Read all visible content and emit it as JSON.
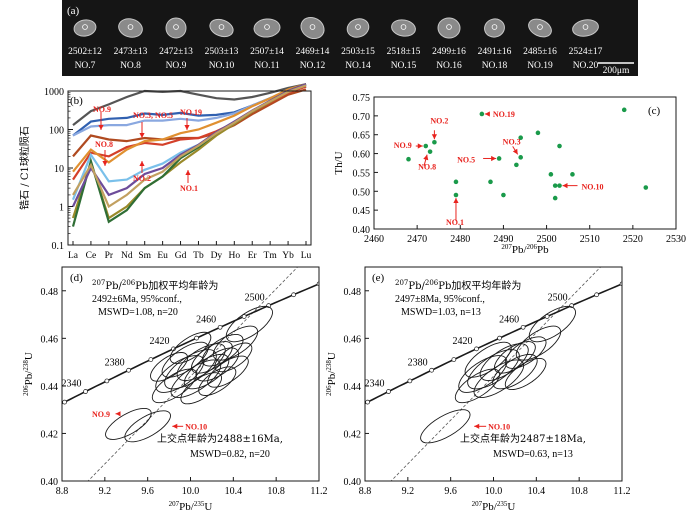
{
  "figure": {
    "panel_a": {
      "label": "(a)",
      "scale": "200μm",
      "grains": [
        {
          "age": "2502±12",
          "no": "NO.7"
        },
        {
          "age": "2473±13",
          "no": "NO.8"
        },
        {
          "age": "2472±13",
          "no": "NO.9"
        },
        {
          "age": "2503±13",
          "no": "NO.10"
        },
        {
          "age": "2507±14",
          "no": "NO.11"
        },
        {
          "age": "2469±14",
          "no": "NO.12"
        },
        {
          "age": "2503±15",
          "no": "NO.14"
        },
        {
          "age": "2518±15",
          "no": "NO.15"
        },
        {
          "age": "2499±16",
          "no": "NO.16"
        },
        {
          "age": "2491±16",
          "no": "NO.18"
        },
        {
          "age": "2485±16",
          "no": "NO.19"
        },
        {
          "age": "2524±17",
          "no": "NO.20"
        }
      ]
    },
    "colors": {
      "red": "#e8231e",
      "green": "#1a9a4a",
      "black": "#1a1a1a"
    }
  },
  "chart_data": [
    {
      "panel": "(b)",
      "type": "line",
      "title": "",
      "ylabel": "锆石 / C1球粒陨石",
      "yscale": "log",
      "ylim": [
        0.1,
        1000
      ],
      "yticks": [
        "0.1",
        "1",
        "10",
        "100",
        "1000"
      ],
      "categories": [
        "La",
        "Ce",
        "Pr",
        "Nd",
        "Sm",
        "Eu",
        "Gd",
        "Tb",
        "Dy",
        "Ho",
        "Er",
        "Tm",
        "Yb",
        "Lu"
      ],
      "annotations": [
        "NO.9",
        "NO.3, NO.5",
        "NO.19",
        "NO.8",
        "NO.2",
        "NO.1"
      ],
      "series": [
        {
          "name": "s1",
          "color": "#555555",
          "values": [
            130,
            300,
            450,
            700,
            1000,
            950,
            1000,
            800,
            650,
            600,
            700,
            900,
            1200,
            1500
          ]
        },
        {
          "name": "s2",
          "color": "#3060b0",
          "values": [
            70,
            160,
            190,
            200,
            260,
            240,
            270,
            230,
            240,
            280,
            420,
            650,
            1000,
            1300
          ]
        },
        {
          "name": "s3",
          "color": "#8aa8e0",
          "values": [
            70,
            120,
            130,
            130,
            170,
            170,
            190,
            170,
            200,
            260,
            420,
            650,
            1000,
            1300
          ]
        },
        {
          "name": "s4",
          "color": "#b04a20",
          "values": [
            20,
            70,
            55,
            50,
            60,
            55,
            60,
            60,
            80,
            130,
            250,
            450,
            800,
            1100
          ]
        },
        {
          "name": "s5",
          "color": "#d4402a",
          "values": [
            5,
            25,
            20,
            35,
            45,
            40,
            55,
            60,
            90,
            150,
            290,
            500,
            900,
            1300
          ]
        },
        {
          "name": "s6",
          "color": "#e09030",
          "values": [
            8,
            30,
            14,
            30,
            50,
            55,
            80,
            100,
            150,
            230,
            400,
            650,
            1100,
            1500
          ]
        },
        {
          "name": "s7",
          "color": "#7ac0ea",
          "values": [
            1.5,
            22,
            4.5,
            5,
            9,
            13,
            25,
            40,
            80,
            150,
            300,
            550,
            950,
            1400
          ]
        },
        {
          "name": "s8",
          "color": "#9a8a2a",
          "values": [
            0.5,
            14,
            0.5,
            1,
            3,
            6,
            14,
            30,
            70,
            140,
            290,
            520,
            950,
            1400
          ]
        },
        {
          "name": "s9",
          "color": "#2f6e35",
          "values": [
            0.3,
            15,
            0.4,
            0.8,
            3,
            6,
            18,
            35,
            80,
            150,
            300,
            550,
            1000,
            1500
          ]
        },
        {
          "name": "s10",
          "color": "#6d4c9a",
          "values": [
            1,
            10,
            2,
            3,
            7,
            10,
            22,
            40,
            85,
            160,
            310,
            560,
            1000,
            1500
          ]
        },
        {
          "name": "s11",
          "color": "#c2a060",
          "values": [
            2,
            12,
            1,
            2,
            5,
            8,
            20,
            38,
            80,
            150,
            300,
            540,
            950,
            1400
          ]
        }
      ]
    },
    {
      "panel": "(c)",
      "type": "scatter",
      "xlabel": "207Pb/206Pb",
      "ylabel": "Th/U",
      "xlim": [
        2460,
        2530
      ],
      "ylim": [
        0.4,
        0.75
      ],
      "xticks": [
        "2460",
        "2470",
        "2480",
        "2490",
        "2500",
        "2510",
        "2520",
        "2530"
      ],
      "yticks": [
        "0.40",
        "0.45",
        "0.50",
        "0.55",
        "0.60",
        "0.65",
        "0.70",
        "0.75"
      ],
      "points": [
        {
          "x": 2468,
          "y": 0.585
        },
        {
          "x": 2472,
          "y": 0.62
        },
        {
          "x": 2473,
          "y": 0.605
        },
        {
          "x": 2474,
          "y": 0.63
        },
        {
          "x": 2479,
          "y": 0.525
        },
        {
          "x": 2479,
          "y": 0.49
        },
        {
          "x": 2485,
          "y": 0.705
        },
        {
          "x": 2487,
          "y": 0.525
        },
        {
          "x": 2489,
          "y": 0.587
        },
        {
          "x": 2490,
          "y": 0.49
        },
        {
          "x": 2493,
          "y": 0.57
        },
        {
          "x": 2494,
          "y": 0.59
        },
        {
          "x": 2494,
          "y": 0.642
        },
        {
          "x": 2498,
          "y": 0.655
        },
        {
          "x": 2501,
          "y": 0.545
        },
        {
          "x": 2502,
          "y": 0.515
        },
        {
          "x": 2502,
          "y": 0.482
        },
        {
          "x": 2503,
          "y": 0.62
        },
        {
          "x": 2503,
          "y": 0.515
        },
        {
          "x": 2506,
          "y": 0.545
        },
        {
          "x": 2518,
          "y": 0.716
        },
        {
          "x": 2523,
          "y": 0.51
        }
      ],
      "annotations": [
        {
          "text": "NO.9",
          "x": 2472,
          "y": 0.62
        },
        {
          "text": "NO.2",
          "x": 2474,
          "y": 0.63
        },
        {
          "text": "NO.8",
          "x": 2473,
          "y": 0.605
        },
        {
          "text": "NO.1",
          "x": 2479,
          "y": 0.49
        },
        {
          "text": "NO.19",
          "x": 2485,
          "y": 0.705
        },
        {
          "text": "NO.5",
          "x": 2489,
          "y": 0.587
        },
        {
          "text": "NO.3",
          "x": 2494,
          "y": 0.59
        },
        {
          "text": "NO.10",
          "x": 2503,
          "y": 0.515
        }
      ]
    },
    {
      "panel": "(d)",
      "type": "scatter",
      "xlabel": "207Pb/235U",
      "ylabel": "206Pb/238U",
      "xlim": [
        8.8,
        11.2
      ],
      "ylim": [
        0.4,
        0.49
      ],
      "xticks": [
        "8.8",
        "9.2",
        "9.6",
        "10.0",
        "10.4",
        "10.8",
        "11.2"
      ],
      "yticks": [
        "0.40",
        "0.42",
        "0.44",
        "0.46",
        "0.48"
      ],
      "concordia_ages": [
        "2340",
        "2380",
        "2420",
        "2460",
        "2500"
      ],
      "text_upper": [
        "207Pb/206Pb加权平均年龄为",
        "2492±6Ma, 95%conf.,",
        "MSWD=1.08, n=20"
      ],
      "text_lower": [
        "上交点年龄为2488±16Ma,",
        "MSWD=0.82, n=20"
      ],
      "annotations": [
        "NO.9",
        "NO.10"
      ],
      "ellipses": [
        {
          "cx": 10.55,
          "cy": 0.466,
          "rx": 0.25,
          "ry": 0.0048,
          "angle": -34
        },
        {
          "cx": 10.42,
          "cy": 0.458,
          "rx": 0.24,
          "ry": 0.0046,
          "angle": -34
        },
        {
          "cx": 10.3,
          "cy": 0.455,
          "rx": 0.22,
          "ry": 0.0044,
          "angle": -34
        },
        {
          "cx": 10.1,
          "cy": 0.45,
          "rx": 0.26,
          "ry": 0.005,
          "angle": -34
        },
        {
          "cx": 10.0,
          "cy": 0.447,
          "rx": 0.28,
          "ry": 0.0052,
          "angle": -34
        },
        {
          "cx": 10.15,
          "cy": 0.446,
          "rx": 0.24,
          "ry": 0.0048,
          "angle": -34
        },
        {
          "cx": 10.25,
          "cy": 0.449,
          "rx": 0.23,
          "ry": 0.0046,
          "angle": -34
        },
        {
          "cx": 9.9,
          "cy": 0.445,
          "rx": 0.26,
          "ry": 0.005,
          "angle": -34
        },
        {
          "cx": 10.05,
          "cy": 0.443,
          "rx": 0.27,
          "ry": 0.0048,
          "angle": -34
        },
        {
          "cx": 10.2,
          "cy": 0.452,
          "rx": 0.22,
          "ry": 0.0044,
          "angle": -34
        },
        {
          "cx": 9.95,
          "cy": 0.451,
          "rx": 0.25,
          "ry": 0.0046,
          "angle": -34
        },
        {
          "cx": 10.35,
          "cy": 0.446,
          "rx": 0.22,
          "ry": 0.0042,
          "angle": -34
        },
        {
          "cx": 9.85,
          "cy": 0.44,
          "rx": 0.24,
          "ry": 0.0044,
          "angle": -34
        },
        {
          "cx": 10.1,
          "cy": 0.439,
          "rx": 0.22,
          "ry": 0.0042,
          "angle": -34
        },
        {
          "cx": 10.0,
          "cy": 0.456,
          "rx": 0.22,
          "ry": 0.0042,
          "angle": -34
        },
        {
          "cx": 10.4,
          "cy": 0.452,
          "rx": 0.2,
          "ry": 0.004,
          "angle": -34
        },
        {
          "cx": 10.25,
          "cy": 0.442,
          "rx": 0.2,
          "ry": 0.004,
          "angle": -34
        },
        {
          "cx": 9.8,
          "cy": 0.448,
          "rx": 0.2,
          "ry": 0.004,
          "angle": -34
        },
        {
          "cx": 9.42,
          "cy": 0.424,
          "rx": 0.24,
          "ry": 0.0042,
          "angle": -30
        },
        {
          "cx": 9.6,
          "cy": 0.423,
          "rx": 0.24,
          "ry": 0.0042,
          "angle": -30
        }
      ]
    },
    {
      "panel": "(e)",
      "type": "scatter",
      "xlabel": "207Pb/235U",
      "ylabel": "206Pb/238U",
      "xlim": [
        8.8,
        11.2
      ],
      "ylim": [
        0.4,
        0.49
      ],
      "xticks": [
        "8.8",
        "9.2",
        "9.6",
        "10.0",
        "10.4",
        "10.8",
        "11.2"
      ],
      "yticks": [
        "0.40",
        "0.42",
        "0.44",
        "0.46",
        "0.48"
      ],
      "concordia_ages": [
        "2340",
        "2380",
        "2420",
        "2460",
        "2500"
      ],
      "text_upper": [
        "207Pb/206Pb加权平均年龄为",
        "2497±8Ma, 95%conf.,",
        "MSWD=1.03, n=13"
      ],
      "text_lower": [
        "上交点年龄为2487±18Ma,",
        "MSWD=0.63, n=13"
      ],
      "annotations": [
        "NO.10"
      ],
      "ellipses": [
        {
          "cx": 10.55,
          "cy": 0.466,
          "rx": 0.25,
          "ry": 0.0048,
          "angle": -34
        },
        {
          "cx": 10.42,
          "cy": 0.458,
          "rx": 0.24,
          "ry": 0.0046,
          "angle": -34
        },
        {
          "cx": 10.3,
          "cy": 0.454,
          "rx": 0.22,
          "ry": 0.0044,
          "angle": -34
        },
        {
          "cx": 10.1,
          "cy": 0.45,
          "rx": 0.26,
          "ry": 0.005,
          "angle": -34
        },
        {
          "cx": 10.0,
          "cy": 0.447,
          "rx": 0.28,
          "ry": 0.0052,
          "angle": -34
        },
        {
          "cx": 10.2,
          "cy": 0.446,
          "rx": 0.24,
          "ry": 0.0048,
          "angle": -34
        },
        {
          "cx": 9.9,
          "cy": 0.445,
          "rx": 0.26,
          "ry": 0.005,
          "angle": -34
        },
        {
          "cx": 10.05,
          "cy": 0.443,
          "rx": 0.27,
          "ry": 0.0048,
          "angle": -34
        },
        {
          "cx": 9.95,
          "cy": 0.451,
          "rx": 0.25,
          "ry": 0.0046,
          "angle": -34
        },
        {
          "cx": 10.3,
          "cy": 0.445,
          "rx": 0.22,
          "ry": 0.0042,
          "angle": -34
        },
        {
          "cx": 9.85,
          "cy": 0.44,
          "rx": 0.24,
          "ry": 0.0044,
          "angle": -34
        },
        {
          "cx": 10.2,
          "cy": 0.452,
          "rx": 0.22,
          "ry": 0.0044,
          "angle": -34
        },
        {
          "cx": 9.55,
          "cy": 0.423,
          "rx": 0.26,
          "ry": 0.0044,
          "angle": -30
        }
      ]
    }
  ]
}
